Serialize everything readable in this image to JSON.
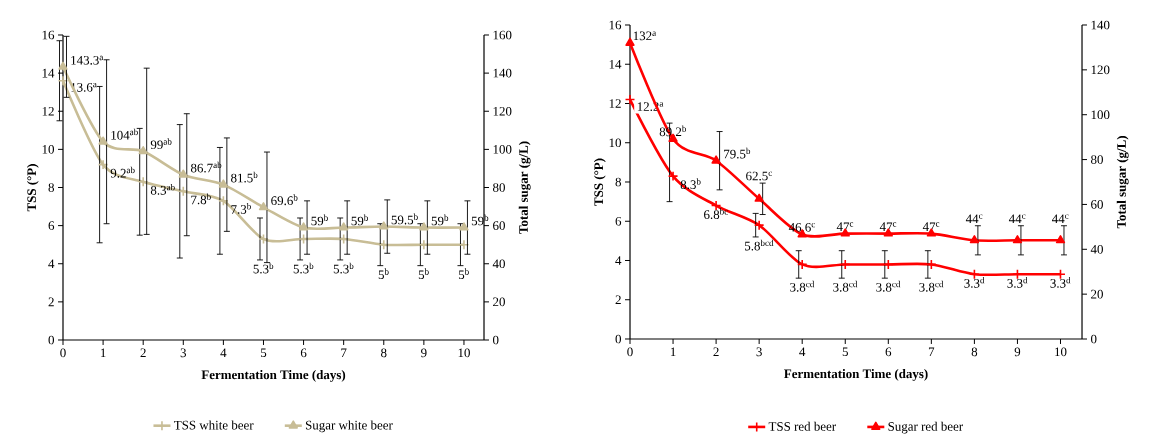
{
  "chart_data": [
    {
      "type": "line",
      "xlabel": "Fermentation Time (days)",
      "ylabel": "TSS (°P)",
      "y2label": "Total sugar (g/L)",
      "legend": "bottom",
      "x": [
        0,
        1,
        2,
        3,
        4,
        5,
        6,
        7,
        8,
        9,
        10
      ],
      "xlim": [
        0,
        10.5
      ],
      "xticks": [
        0,
        1,
        2,
        3,
        4,
        5,
        6,
        7,
        8,
        9,
        10
      ],
      "ylim": [
        0,
        16
      ],
      "yticks": [
        0,
        2,
        4,
        6,
        8,
        10,
        12,
        14,
        16
      ],
      "y2lim": [
        0,
        160
      ],
      "y2ticks": [
        0,
        20,
        40,
        60,
        80,
        100,
        120,
        140,
        160
      ],
      "series": [
        {
          "name": "TSS white beer",
          "color": "#c8bd96",
          "marker": "cross",
          "values": [
            13.6,
            9.2,
            8.3,
            7.8,
            7.3,
            5.3,
            5.3,
            5.3,
            5,
            5,
            5
          ],
          "errors": [
            2.1,
            4.1,
            2.8,
            3.5,
            2.8,
            1.1,
            1.1,
            1.1,
            1.1,
            1.1,
            1.1
          ],
          "value_labels": [
            "13.6$^{a}$",
            "9.2$^{ab}$",
            "8.3$^{ab}$",
            "7.8$^{b}$",
            "7.3$^{b}$",
            "5.3$^{b}$",
            "5.3$^{b}$",
            "5.3$^{b}$",
            "5$^{b}$",
            "5$^{b}$",
            "5$^{b}$"
          ]
        },
        {
          "name": "Sugar white beer",
          "color": "#c8bd96",
          "marker": "triangle",
          "axis": "y2",
          "values": [
            143.3,
            104,
            99,
            86.7,
            81.5,
            69.6,
            59,
            59,
            59.5,
            59,
            59
          ],
          "errors": [
            16,
            43,
            43.6,
            32,
            24.5,
            29,
            14,
            14,
            14,
            14,
            14
          ],
          "value_labels": [
            "143.3$^{a}$",
            "104$^{ab}$",
            "99$^{ab}$",
            "86.7$^{ab}$",
            "81.5$^{b}$",
            "69.6$^{b}$",
            "59$^{b}$",
            "59$^{b}$",
            "59.5$^{b}$",
            "59$^{b}$",
            "59$^{b}$"
          ]
        }
      ]
    },
    {
      "type": "line",
      "xlabel": "Fermentation Time (days)",
      "ylabel": "TSS (°P)",
      "y2label": "Total sugar (g/L)",
      "legend": "bottom",
      "x": [
        0,
        1,
        2,
        3,
        4,
        5,
        6,
        7,
        8,
        9,
        10
      ],
      "xlim": [
        0,
        10.5
      ],
      "xticks": [
        0,
        1,
        2,
        3,
        4,
        5,
        6,
        7,
        8,
        9,
        10
      ],
      "ylim": [
        0,
        16
      ],
      "yticks": [
        0,
        2,
        4,
        6,
        8,
        10,
        12,
        14,
        16
      ],
      "y2lim": [
        0,
        140
      ],
      "y2ticks": [
        0,
        20,
        40,
        60,
        80,
        100,
        120,
        140
      ],
      "series": [
        {
          "name": "TSS red beer",
          "color": "#ff0000",
          "marker": "cross",
          "values": [
            12.2,
            8.3,
            6.8,
            5.8,
            3.8,
            3.8,
            3.8,
            3.8,
            3.3,
            3.3,
            3.3
          ],
          "errors": [
            null,
            [
              7,
              11
            ],
            null,
            0.6,
            0.7,
            0.7,
            0.7,
            0.7,
            null,
            null,
            null
          ],
          "value_labels": [
            "12.2$^{a}$",
            "8.3$^{b}$",
            "6.8$^{bc}$",
            "5.8$^{bcd}$",
            "3.8$^{cd}$",
            "3.8$^{cd}$",
            "3.8$^{cd}$",
            "3.8$^{cd}$",
            "3.3$^{d}$",
            "3.3$^{d}$",
            "3.3$^{d}$"
          ]
        },
        {
          "name": "Sugar red beer",
          "color": "#ff0000",
          "marker": "triangle",
          "axis": "y2",
          "values": [
            132,
            89.2,
            79.5,
            62.5,
            46.6,
            47,
            47,
            47,
            44,
            44,
            44
          ],
          "errors": [
            null,
            null,
            13,
            7,
            null,
            null,
            null,
            null,
            6.5,
            6.5,
            6.5
          ],
          "value_labels": [
            "132$^{a}$",
            "89.2$^{b}$",
            "79.5$^{b}$",
            "62.5$^{c}$",
            "46.6$^{c}$",
            "47$^{c}$",
            "47$^{c}$",
            "47$^{c}$",
            "44$^{c}$",
            "44$^{c}$",
            "44$^{c}$"
          ]
        }
      ]
    }
  ]
}
